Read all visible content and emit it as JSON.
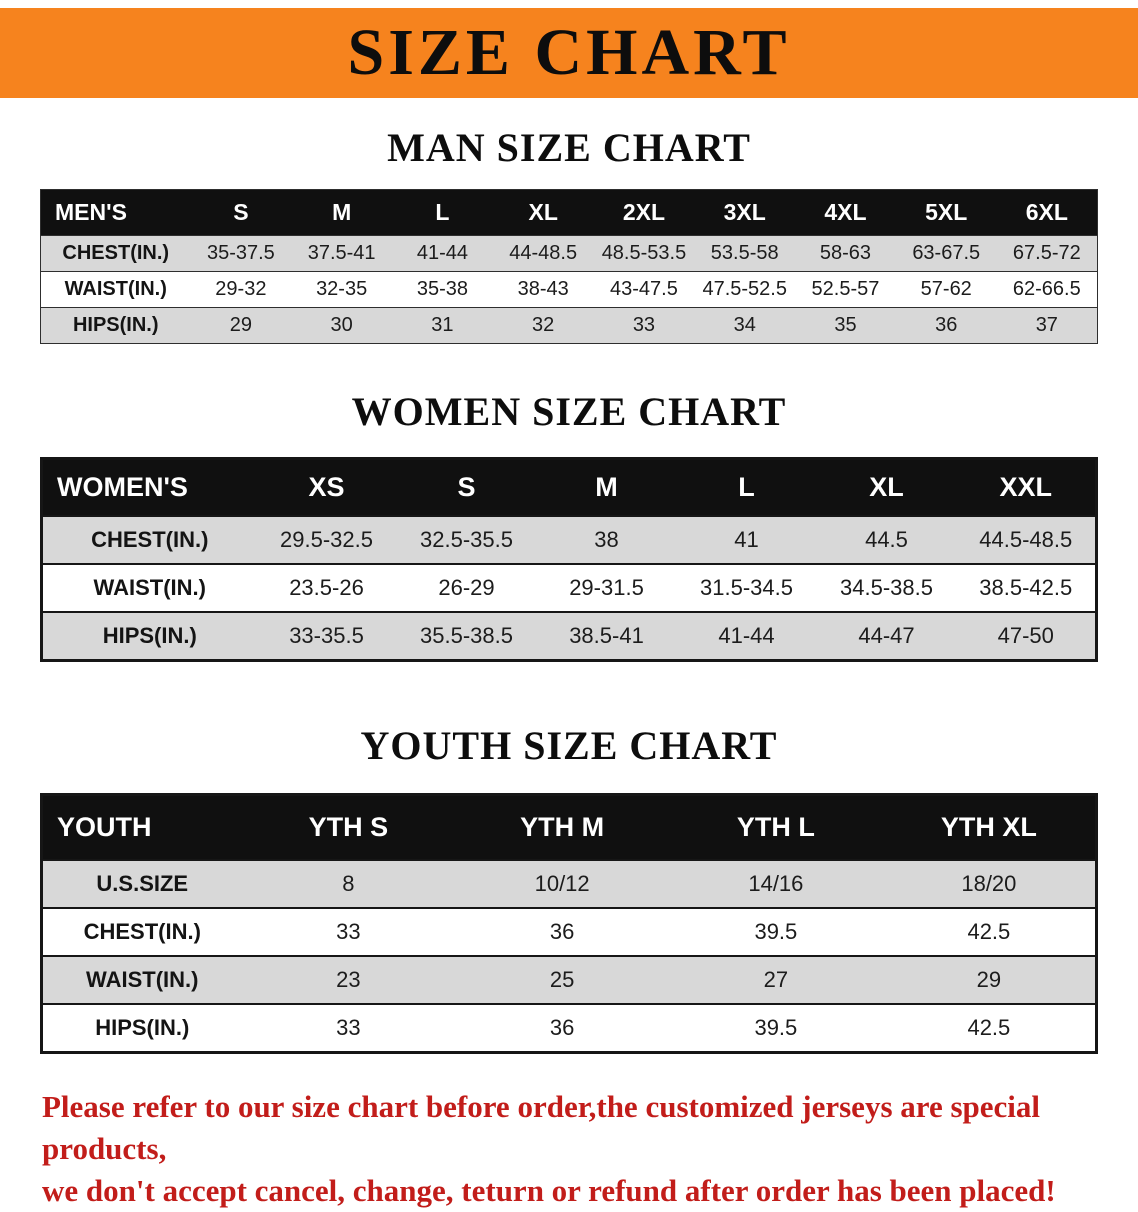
{
  "banner": {
    "title": "SIZE CHART",
    "bg_color": "#f6831e",
    "text_color": "#0d0d0d"
  },
  "sections": [
    {
      "heading": "MAN SIZE CHART",
      "table": {
        "header": [
          "MEN'S",
          "S",
          "M",
          "L",
          "XL",
          "2XL",
          "3XL",
          "4XL",
          "5XL",
          "6XL"
        ],
        "rows": [
          [
            "CHEST(IN.)",
            "35-37.5",
            "37.5-41",
            "41-44",
            "44-48.5",
            "48.5-53.5",
            "53.5-58",
            "58-63",
            "63-67.5",
            "67.5-72"
          ],
          [
            "WAIST(IN.)",
            "29-32",
            "32-35",
            "35-38",
            "38-43",
            "43-47.5",
            "47.5-52.5",
            "52.5-57",
            "57-62",
            "62-66.5"
          ],
          [
            "HIPS(IN.)",
            "29",
            "30",
            "31",
            "32",
            "33",
            "34",
            "35",
            "36",
            "37"
          ]
        ]
      }
    },
    {
      "heading": "WOMEN SIZE CHART",
      "table": {
        "header": [
          "WOMEN'S",
          "XS",
          "S",
          "M",
          "L",
          "XL",
          "XXL"
        ],
        "rows": [
          [
            "CHEST(IN.)",
            "29.5-32.5",
            "32.5-35.5",
            "38",
            "41",
            "44.5",
            "44.5-48.5"
          ],
          [
            "WAIST(IN.)",
            "23.5-26",
            "26-29",
            "29-31.5",
            "31.5-34.5",
            "34.5-38.5",
            "38.5-42.5"
          ],
          [
            "HIPS(IN.)",
            "33-35.5",
            "35.5-38.5",
            "38.5-41",
            "41-44",
            "44-47",
            "47-50"
          ]
        ]
      }
    },
    {
      "heading": "YOUTH SIZE CHART",
      "table": {
        "header": [
          "YOUTH",
          "YTH S",
          "YTH M",
          "YTH L",
          "YTH XL"
        ],
        "rows": [
          [
            "U.S.SIZE",
            "8",
            "10/12",
            "14/16",
            "18/20"
          ],
          [
            "CHEST(IN.)",
            "33",
            "36",
            "39.5",
            "42.5"
          ],
          [
            "WAIST(IN.)",
            "23",
            "25",
            "27",
            "29"
          ],
          [
            "HIPS(IN.)",
            "33",
            "36",
            "39.5",
            "42.5"
          ]
        ]
      }
    }
  ],
  "disclaimer": {
    "line1": "Please refer to our size chart before order,the customized jerseys are special products,",
    "line2": "we don't accept cancel, change, teturn or refund after order has been placed!",
    "color": "#c21d1a"
  }
}
